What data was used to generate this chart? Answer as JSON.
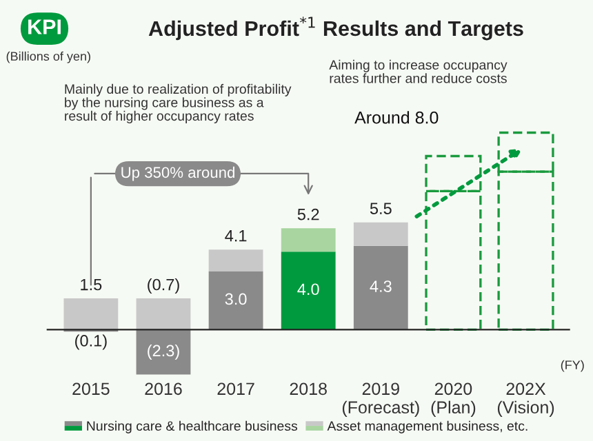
{
  "chart_data": {
    "type": "bar",
    "stacked": true,
    "title": "Adjusted Profit$^{*1}$ Results and Targets",
    "categories": [
      "2015",
      "2016",
      "2017",
      "2018",
      "2019\n(Forecast)",
      "2020\n(Plan)",
      "202X\n(Vision)"
    ],
    "series": [
      {
        "name": "Nursing care & healthcare business",
        "color": "#8a8a8a",
        "colors": [
          "#8a8a8a",
          "#8a8a8a",
          "#8a8a8a",
          "#009a3e",
          "#8a8a8a",
          null,
          null
        ],
        "values": [
          -0.1,
          -2.3,
          3.0,
          4.0,
          4.3,
          null,
          null
        ],
        "value_labels": [
          "(0.1)",
          "(2.3)",
          "3.0",
          "4.0",
          "4.3",
          null,
          null
        ]
      },
      {
        "name": "Asset management business, etc.",
        "color": "#c8c8c8",
        "colors": [
          "#c8c8c8",
          "#c8c8c8",
          "#c8c8c8",
          "#a8d5a0",
          "#c8c8c8",
          null,
          null
        ],
        "values": [
          1.6,
          1.6,
          1.1,
          1.2,
          1.2,
          null,
          null
        ]
      },
      {
        "color": "#1a9a3e",
        "line_style": "dashed",
        "values": [
          null,
          null,
          null,
          null,
          null,
          7.1,
          8.1
        ]
      },
      {
        "color": "#1a9a3e",
        "line_style": "dashed",
        "values": [
          null,
          null,
          null,
          null,
          null,
          1.8,
          2.0
        ]
      }
    ],
    "totals": [
      "1.5",
      "(0.7)",
      "4.1",
      "5.2",
      "5.5",
      null,
      null
    ],
    "annotations": [
      "KPI",
      "(Billions of yen)",
      "Mainly due to realization of profitability\nby the nursing care business as a\nresult of higher occupancy rates",
      "Aiming to increase occupancy\nrates further and reduce costs",
      "Up 350% around",
      "Around 8.0",
      "(FY)"
    ],
    "legend": "bottom"
  }
}
